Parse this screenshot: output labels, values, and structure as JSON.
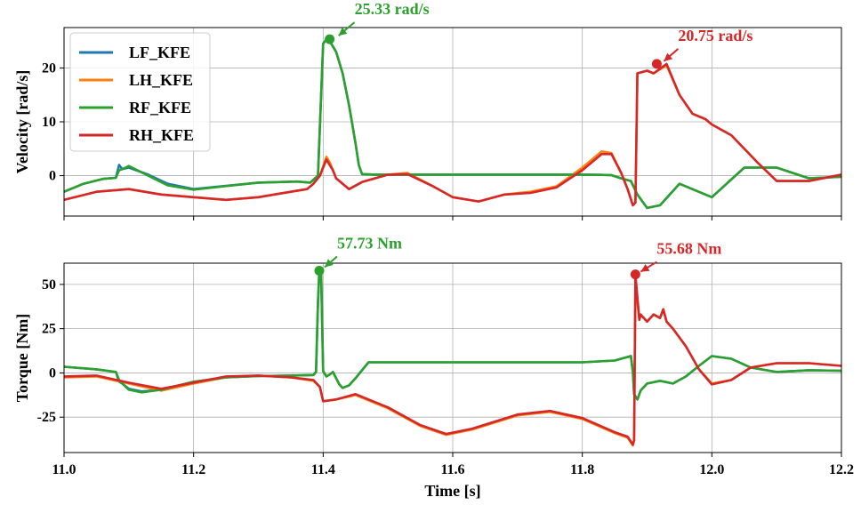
{
  "chart_data": [
    {
      "type": "line",
      "ylabel": "Velocity [rad/s]",
      "xlim": [
        11.0,
        12.2
      ],
      "ylim": [
        -7.5,
        27.5
      ],
      "yticks": [
        0,
        10,
        20
      ],
      "xticks": [
        11.0,
        11.2,
        11.4,
        11.6,
        11.8,
        12.0,
        12.2
      ],
      "grid": true,
      "legend": {
        "placement": "top-left",
        "entries": [
          "LF_KFE",
          "LH_KFE",
          "RF_KFE",
          "RH_KFE"
        ]
      },
      "annotations": [
        {
          "label": "25.33 rad/s",
          "x": 11.41,
          "y": 25.33,
          "color": "#2ca02c"
        },
        {
          "label": "20.75 rad/s",
          "x": 11.915,
          "y": 20.75,
          "color": "#d62728"
        }
      ],
      "series": [
        {
          "name": "LF_KFE",
          "color": "#1f77b4",
          "x": [
            11.0,
            11.03,
            11.06,
            11.08,
            11.085,
            11.09,
            11.1,
            11.13,
            11.16,
            11.2,
            11.3,
            11.36,
            11.38,
            11.392,
            11.4,
            11.405,
            11.41,
            11.42,
            11.43,
            11.44,
            11.45,
            11.455,
            11.46,
            11.48,
            11.5,
            11.52,
            11.55,
            11.6,
            11.64,
            11.7,
            11.75,
            11.8,
            11.83,
            11.845,
            11.86,
            11.875,
            11.885,
            11.9,
            11.92,
            11.95,
            12.0,
            12.05,
            12.1,
            12.15,
            12.2
          ],
          "values": [
            -3.0,
            -1.5,
            -0.6,
            -0.4,
            2.0,
            1.2,
            1.5,
            0.2,
            -1.5,
            -2.5,
            -1.3,
            -1.1,
            -1.3,
            0,
            24.5,
            25.3,
            25.0,
            23.0,
            19.0,
            13.0,
            6.0,
            2.0,
            0.3,
            0.2,
            0.2,
            0.2,
            0.2,
            0.2,
            0.2,
            0.2,
            0.2,
            0.2,
            0.15,
            0.1,
            -0.5,
            -1.0,
            -3.5,
            -6.0,
            -5.5,
            -1.5,
            -4.0,
            1.5,
            1.5,
            -0.5,
            -0.2
          ]
        },
        {
          "name": "LH_KFE",
          "color": "#ff7f0e",
          "x": [
            11.0,
            11.05,
            11.1,
            11.15,
            11.25,
            11.3,
            11.35,
            11.375,
            11.385,
            11.395,
            11.405,
            11.41,
            11.415,
            11.42,
            11.44,
            11.46,
            11.5,
            11.53,
            11.57,
            11.6,
            11.64,
            11.68,
            11.72,
            11.76,
            11.8,
            11.83,
            11.845,
            11.86,
            11.87,
            11.878,
            11.882,
            11.885,
            11.9,
            11.91,
            11.93,
            11.95,
            11.97,
            11.99,
            12.0,
            12.03,
            12.07,
            12.1,
            12.15,
            12.2
          ],
          "values": [
            -4.5,
            -3.0,
            -2.5,
            -3.5,
            -4.5,
            -4.0,
            -3.0,
            -2.5,
            -1.5,
            0,
            3.5,
            2.5,
            1.0,
            -0.5,
            -2.5,
            -1.2,
            0.2,
            0.5,
            -2.0,
            -4.0,
            -4.8,
            -3.5,
            -3.0,
            -2.0,
            1.5,
            4.5,
            4.2,
            0.5,
            -2.5,
            -5.5,
            -5.0,
            19.0,
            19.5,
            19.0,
            20.5,
            15.0,
            11.5,
            10.5,
            9.5,
            7.5,
            2.5,
            -1.0,
            -1.0,
            0.2
          ]
        },
        {
          "name": "RF_KFE",
          "color": "#2ca02c",
          "x": [
            11.0,
            11.03,
            11.06,
            11.08,
            11.085,
            11.09,
            11.1,
            11.13,
            11.16,
            11.2,
            11.3,
            11.36,
            11.38,
            11.392,
            11.4,
            11.405,
            11.41,
            11.42,
            11.43,
            11.44,
            11.45,
            11.455,
            11.46,
            11.48,
            11.5,
            11.52,
            11.55,
            11.6,
            11.64,
            11.7,
            11.75,
            11.8,
            11.83,
            11.845,
            11.86,
            11.875,
            11.885,
            11.9,
            11.92,
            11.95,
            12.0,
            12.05,
            12.1,
            12.15,
            12.2
          ],
          "values": [
            -3.0,
            -1.5,
            -0.6,
            -0.4,
            1.0,
            1.2,
            1.8,
            0.0,
            -1.8,
            -2.6,
            -1.3,
            -1.1,
            -1.3,
            0,
            24.5,
            25.3,
            25.0,
            23.0,
            19.0,
            13.0,
            6.0,
            2.0,
            0.3,
            0.2,
            0.2,
            0.2,
            0.2,
            0.2,
            0.2,
            0.2,
            0.2,
            0.2,
            0.15,
            0.1,
            -0.5,
            -1.0,
            -3.5,
            -6.0,
            -5.5,
            -1.5,
            -4.0,
            1.5,
            1.5,
            -0.5,
            -0.2
          ]
        },
        {
          "name": "RH_KFE",
          "color": "#d62728",
          "x": [
            11.0,
            11.05,
            11.1,
            11.15,
            11.25,
            11.3,
            11.35,
            11.375,
            11.385,
            11.395,
            11.405,
            11.41,
            11.415,
            11.42,
            11.44,
            11.46,
            11.5,
            11.53,
            11.57,
            11.6,
            11.64,
            11.68,
            11.72,
            11.76,
            11.8,
            11.83,
            11.845,
            11.86,
            11.87,
            11.878,
            11.882,
            11.885,
            11.9,
            11.91,
            11.93,
            11.95,
            11.97,
            11.99,
            12.0,
            12.03,
            12.07,
            12.1,
            12.15,
            12.2
          ],
          "values": [
            -4.5,
            -3.0,
            -2.5,
            -3.5,
            -4.5,
            -4.0,
            -3.0,
            -2.5,
            -1.5,
            0,
            3.0,
            2.0,
            1.0,
            -0.5,
            -2.5,
            -1.2,
            0.2,
            0.3,
            -2.0,
            -4.0,
            -4.8,
            -3.5,
            -3.2,
            -2.2,
            1.0,
            4.0,
            4.0,
            0.5,
            -2.5,
            -5.5,
            -5.0,
            19.0,
            19.5,
            19.0,
            20.75,
            15.0,
            11.5,
            10.5,
            9.5,
            7.5,
            2.5,
            -1.0,
            -1.0,
            0.2
          ]
        }
      ]
    },
    {
      "type": "line",
      "xlabel": "Time [s]",
      "ylabel": "Torque [Nm]",
      "xlim": [
        11.0,
        12.2
      ],
      "ylim": [
        -45,
        62
      ],
      "yticks": [
        -25,
        0,
        25,
        50
      ],
      "xticks": [
        11.0,
        11.2,
        11.4,
        11.6,
        11.8,
        12.0,
        12.2
      ],
      "xticklabels": [
        "11.0",
        "11.2",
        "11.4",
        "11.6",
        "11.8",
        "12.0",
        "12.2"
      ],
      "grid": true,
      "annotations": [
        {
          "label": "57.73 Nm",
          "x": 11.394,
          "y": 57.73,
          "color": "#2ca02c"
        },
        {
          "label": "55.68 Nm",
          "x": 11.882,
          "y": 55.68,
          "color": "#d62728"
        }
      ],
      "series": [
        {
          "name": "LF_KFE",
          "color": "#1f77b4",
          "x": [
            11.0,
            11.05,
            11.08,
            11.085,
            11.09,
            11.1,
            11.12,
            11.15,
            11.2,
            11.25,
            11.3,
            11.35,
            11.385,
            11.389,
            11.392,
            11.394,
            11.397,
            11.4,
            11.405,
            11.41,
            11.415,
            11.42,
            11.425,
            11.43,
            11.44,
            11.45,
            11.46,
            11.47,
            11.55,
            11.6,
            11.7,
            11.8,
            11.85,
            11.875,
            11.878,
            11.88,
            11.885,
            11.89,
            11.9,
            11.92,
            11.94,
            11.96,
            11.98,
            12.0,
            12.03,
            12.06,
            12.1,
            12.15,
            12.2
          ],
          "values": [
            3.5,
            2.0,
            0.5,
            -5.0,
            -6.0,
            -9.0,
            -10.5,
            -9.5,
            -5.0,
            -2.5,
            -1.8,
            -1.5,
            -1.2,
            0.5,
            40.0,
            57.0,
            55.0,
            1.0,
            -2.0,
            -1.0,
            0.5,
            -3.0,
            -6.5,
            -8.5,
            -7.0,
            -3.0,
            1.5,
            6.0,
            6.0,
            6.0,
            6.0,
            6.0,
            7.0,
            9.5,
            0.5,
            -12.0,
            -15.0,
            -10.0,
            -6.0,
            -4.5,
            -6.0,
            -2.0,
            4.0,
            9.5,
            8.0,
            3.0,
            0.5,
            1.5,
            1.2
          ]
        },
        {
          "name": "LH_KFE",
          "color": "#ff7f0e",
          "x": [
            11.0,
            11.05,
            11.1,
            11.15,
            11.2,
            11.25,
            11.3,
            11.35,
            11.385,
            11.395,
            11.4,
            11.42,
            11.45,
            11.5,
            11.55,
            11.59,
            11.63,
            11.7,
            11.75,
            11.8,
            11.85,
            11.87,
            11.878,
            11.88,
            11.882,
            11.888,
            11.89,
            11.9,
            11.91,
            11.92,
            11.925,
            11.93,
            11.94,
            11.96,
            11.98,
            12.0,
            12.03,
            12.06,
            12.1,
            12.15,
            12.2
          ],
          "values": [
            -2.5,
            -2.0,
            -6.0,
            -10.0,
            -6.0,
            -2.5,
            -1.5,
            -2.5,
            -4.5,
            -8.0,
            -16.0,
            -15.0,
            -12.5,
            -20.0,
            -30.0,
            -35.0,
            -32.0,
            -24.0,
            -22.0,
            -26.0,
            -34.0,
            -36.5,
            -41.0,
            -38.0,
            50.0,
            30.0,
            33.0,
            29.0,
            33.0,
            31.0,
            36.0,
            29.0,
            25.0,
            15.0,
            2.0,
            -6.0,
            -4.0,
            3.0,
            5.5,
            5.5,
            4.0
          ]
        },
        {
          "name": "RF_KFE",
          "color": "#2ca02c",
          "x": [
            11.0,
            11.05,
            11.08,
            11.085,
            11.09,
            11.1,
            11.12,
            11.15,
            11.2,
            11.25,
            11.3,
            11.35,
            11.385,
            11.389,
            11.392,
            11.394,
            11.397,
            11.4,
            11.405,
            11.41,
            11.415,
            11.42,
            11.425,
            11.43,
            11.44,
            11.45,
            11.46,
            11.47,
            11.55,
            11.6,
            11.7,
            11.8,
            11.85,
            11.875,
            11.878,
            11.88,
            11.885,
            11.89,
            11.9,
            11.92,
            11.94,
            11.96,
            11.98,
            12.0,
            12.03,
            12.06,
            12.1,
            12.15,
            12.2
          ],
          "values": [
            3.5,
            2.0,
            0.5,
            -4.0,
            -6.0,
            -9.5,
            -11.0,
            -9.5,
            -5.0,
            -2.5,
            -1.8,
            -1.5,
            -1.2,
            0.5,
            40.0,
            57.73,
            55.0,
            1.0,
            -2.0,
            -1.0,
            0.5,
            -3.0,
            -6.5,
            -8.5,
            -7.0,
            -3.0,
            1.5,
            6.0,
            6.0,
            6.0,
            6.0,
            6.0,
            7.0,
            9.5,
            0.5,
            -12.0,
            -15.0,
            -10.0,
            -6.0,
            -4.5,
            -6.0,
            -2.0,
            4.0,
            9.5,
            8.0,
            3.0,
            0.5,
            1.5,
            1.2
          ]
        },
        {
          "name": "RH_KFE",
          "color": "#d62728",
          "x": [
            11.0,
            11.05,
            11.1,
            11.15,
            11.2,
            11.25,
            11.3,
            11.35,
            11.385,
            11.395,
            11.4,
            11.42,
            11.45,
            11.5,
            11.55,
            11.59,
            11.63,
            11.7,
            11.75,
            11.8,
            11.85,
            11.87,
            11.878,
            11.88,
            11.882,
            11.888,
            11.89,
            11.9,
            11.91,
            11.92,
            11.925,
            11.93,
            11.94,
            11.96,
            11.98,
            12.0,
            12.03,
            12.06,
            12.1,
            12.15,
            12.2
          ],
          "values": [
            -2.0,
            -1.5,
            -5.5,
            -9.0,
            -5.5,
            -2.0,
            -1.5,
            -2.5,
            -4.0,
            -8.0,
            -16.0,
            -15.0,
            -12.0,
            -19.5,
            -29.5,
            -34.5,
            -31.5,
            -23.5,
            -21.5,
            -25.5,
            -33.5,
            -36.0,
            -40.5,
            -38.0,
            55.68,
            30.0,
            33.0,
            29.0,
            33.0,
            31.0,
            36.0,
            29.0,
            25.0,
            15.0,
            2.0,
            -6.5,
            -4.0,
            3.0,
            5.5,
            5.5,
            4.0
          ]
        }
      ]
    }
  ]
}
